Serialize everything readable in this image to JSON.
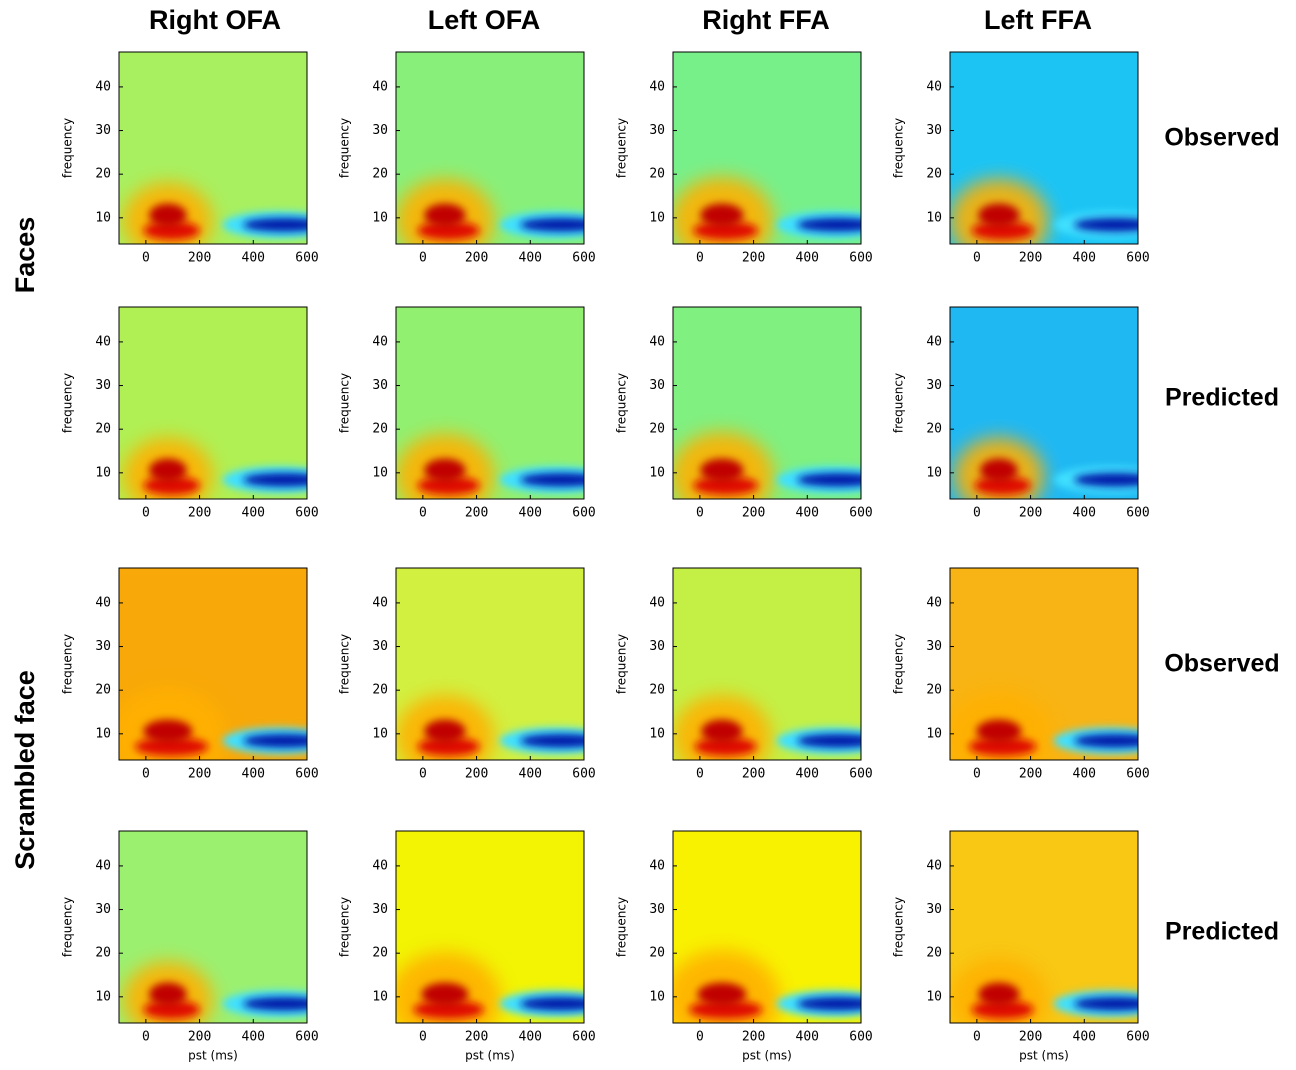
{
  "figure": {
    "column_titles": [
      "Right OFA",
      "Left OFA",
      "Right FFA",
      "Left FFA"
    ],
    "row_group_labels": [
      "Faces",
      "Scrambled face"
    ],
    "row_labels": [
      "Observed",
      "Predicted",
      "Observed",
      "Predicted"
    ]
  },
  "chart_data": [
    {
      "type": "heatmap",
      "xlim": [
        -100,
        600
      ],
      "ylim": [
        4,
        48
      ],
      "xticks": [
        0,
        200,
        400,
        600
      ],
      "yticks": [
        10,
        20,
        30,
        40
      ],
      "ylabel": "frequency"
    },
    {
      "type": "heatmap",
      "xlim": [
        -100,
        600
      ],
      "ylim": [
        4,
        48
      ],
      "xticks": [
        0,
        200,
        400,
        600
      ],
      "yticks": [
        10,
        20,
        30,
        40
      ],
      "ylabel": "frequency"
    },
    {
      "type": "heatmap",
      "xlim": [
        -100,
        600
      ],
      "ylim": [
        4,
        48
      ],
      "xticks": [
        0,
        200,
        400,
        600
      ],
      "yticks": [
        10,
        20,
        30,
        40
      ],
      "ylabel": "frequency"
    },
    {
      "type": "heatmap",
      "xlim": [
        -100,
        600
      ],
      "ylim": [
        4,
        48
      ],
      "xticks": [
        0,
        200,
        400,
        600
      ],
      "yticks": [
        10,
        20,
        30,
        40
      ],
      "ylabel": "frequency"
    },
    {
      "type": "heatmap",
      "xlim": [
        -100,
        600
      ],
      "ylim": [
        4,
        48
      ],
      "xticks": [
        0,
        200,
        400,
        600
      ],
      "yticks": [
        10,
        20,
        30,
        40
      ],
      "ylabel": "frequency"
    },
    {
      "type": "heatmap",
      "xlim": [
        -100,
        600
      ],
      "ylim": [
        4,
        48
      ],
      "xticks": [
        0,
        200,
        400,
        600
      ],
      "yticks": [
        10,
        20,
        30,
        40
      ],
      "ylabel": "frequency"
    },
    {
      "type": "heatmap",
      "xlim": [
        -100,
        600
      ],
      "ylim": [
        4,
        48
      ],
      "xticks": [
        0,
        200,
        400,
        600
      ],
      "yticks": [
        10,
        20,
        30,
        40
      ],
      "ylabel": "frequency"
    },
    {
      "type": "heatmap",
      "xlim": [
        -100,
        600
      ],
      "ylim": [
        4,
        48
      ],
      "xticks": [
        0,
        200,
        400,
        600
      ],
      "yticks": [
        10,
        20,
        30,
        40
      ],
      "ylabel": "frequency"
    },
    {
      "type": "heatmap",
      "xlim": [
        -100,
        600
      ],
      "ylim": [
        4,
        48
      ],
      "xticks": [
        0,
        200,
        400,
        600
      ],
      "yticks": [
        10,
        20,
        30,
        40
      ],
      "ylabel": "frequency"
    },
    {
      "type": "heatmap",
      "xlim": [
        -100,
        600
      ],
      "ylim": [
        4,
        48
      ],
      "xticks": [
        0,
        200,
        400,
        600
      ],
      "yticks": [
        10,
        20,
        30,
        40
      ],
      "ylabel": "frequency"
    },
    {
      "type": "heatmap",
      "xlim": [
        -100,
        600
      ],
      "ylim": [
        4,
        48
      ],
      "xticks": [
        0,
        200,
        400,
        600
      ],
      "yticks": [
        10,
        20,
        30,
        40
      ],
      "ylabel": "frequency"
    },
    {
      "type": "heatmap",
      "xlim": [
        -100,
        600
      ],
      "ylim": [
        4,
        48
      ],
      "xticks": [
        0,
        200,
        400,
        600
      ],
      "yticks": [
        10,
        20,
        30,
        40
      ],
      "ylabel": "frequency"
    },
    {
      "type": "heatmap",
      "xlim": [
        -100,
        600
      ],
      "ylim": [
        4,
        48
      ],
      "xticks": [
        0,
        200,
        400,
        600
      ],
      "yticks": [
        10,
        20,
        30,
        40
      ],
      "ylabel": "frequency",
      "xlabel": "pst (ms)"
    },
    {
      "type": "heatmap",
      "xlim": [
        -100,
        600
      ],
      "ylim": [
        4,
        48
      ],
      "xticks": [
        0,
        200,
        400,
        600
      ],
      "yticks": [
        10,
        20,
        30,
        40
      ],
      "ylabel": "frequency",
      "xlabel": "pst (ms)"
    },
    {
      "type": "heatmap",
      "xlim": [
        -100,
        600
      ],
      "ylim": [
        4,
        48
      ],
      "xticks": [
        0,
        200,
        400,
        600
      ],
      "yticks": [
        10,
        20,
        30,
        40
      ],
      "ylabel": "frequency",
      "xlabel": "pst (ms)"
    },
    {
      "type": "heatmap",
      "xlim": [
        -100,
        600
      ],
      "ylim": [
        4,
        48
      ],
      "xticks": [
        0,
        200,
        400,
        600
      ],
      "yticks": [
        10,
        20,
        30,
        40
      ],
      "ylabel": "frequency",
      "xlabel": "pst (ms)"
    }
  ]
}
